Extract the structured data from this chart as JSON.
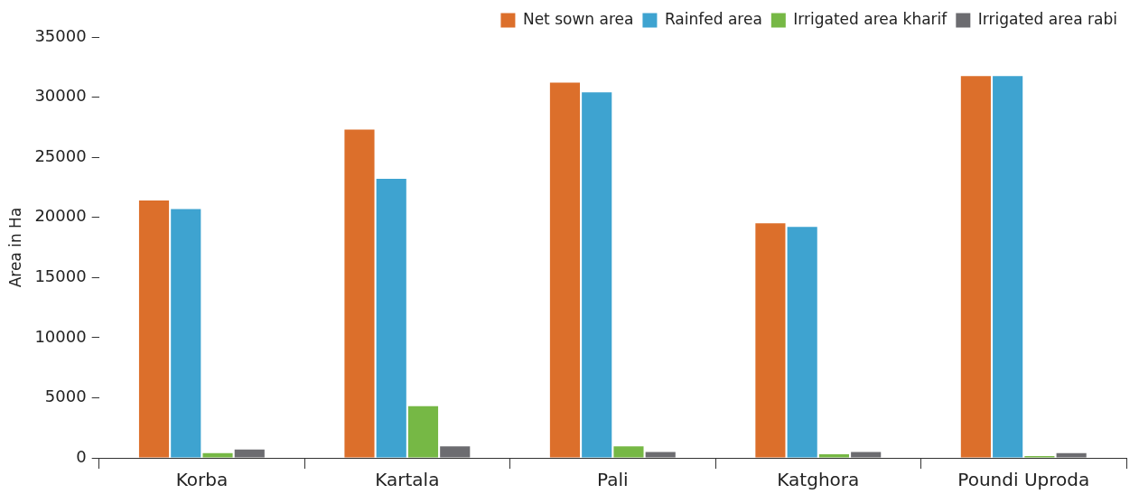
{
  "chart_data": {
    "type": "bar",
    "ylabel": "Area in Ha",
    "categories": [
      "Korba",
      "Kartala",
      "Pali",
      "Katghora",
      "Poundi Uproda"
    ],
    "series": [
      {
        "name": "Net sown area",
        "color": "#dc6f2b",
        "values": [
          21400,
          27300,
          31200,
          19500,
          31750
        ]
      },
      {
        "name": "Rainfed area",
        "color": "#3ea3d0",
        "values": [
          20700,
          23200,
          30400,
          19200,
          31750
        ]
      },
      {
        "name": "Irrigated area kharif",
        "color": "#76b845",
        "values": [
          400,
          4300,
          950,
          300,
          150
        ]
      },
      {
        "name": "Irrigated area rabi",
        "color": "#6c6c70",
        "values": [
          700,
          950,
          480,
          480,
          400
        ]
      }
    ],
    "ylim": [
      0,
      35000
    ],
    "yticks": [
      0,
      5000,
      10000,
      15000,
      20000,
      25000,
      30000,
      35000
    ],
    "grid": false,
    "legend": "top right"
  }
}
